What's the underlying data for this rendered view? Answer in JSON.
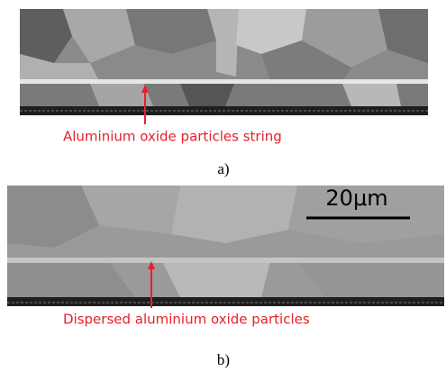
{
  "panels": [
    {
      "label": "a)",
      "annotation": "Aluminium oxide particles string"
    },
    {
      "label": "b)",
      "annotation": "Dispersed aluminium oxide particles",
      "scale_bar": "20μm"
    }
  ]
}
